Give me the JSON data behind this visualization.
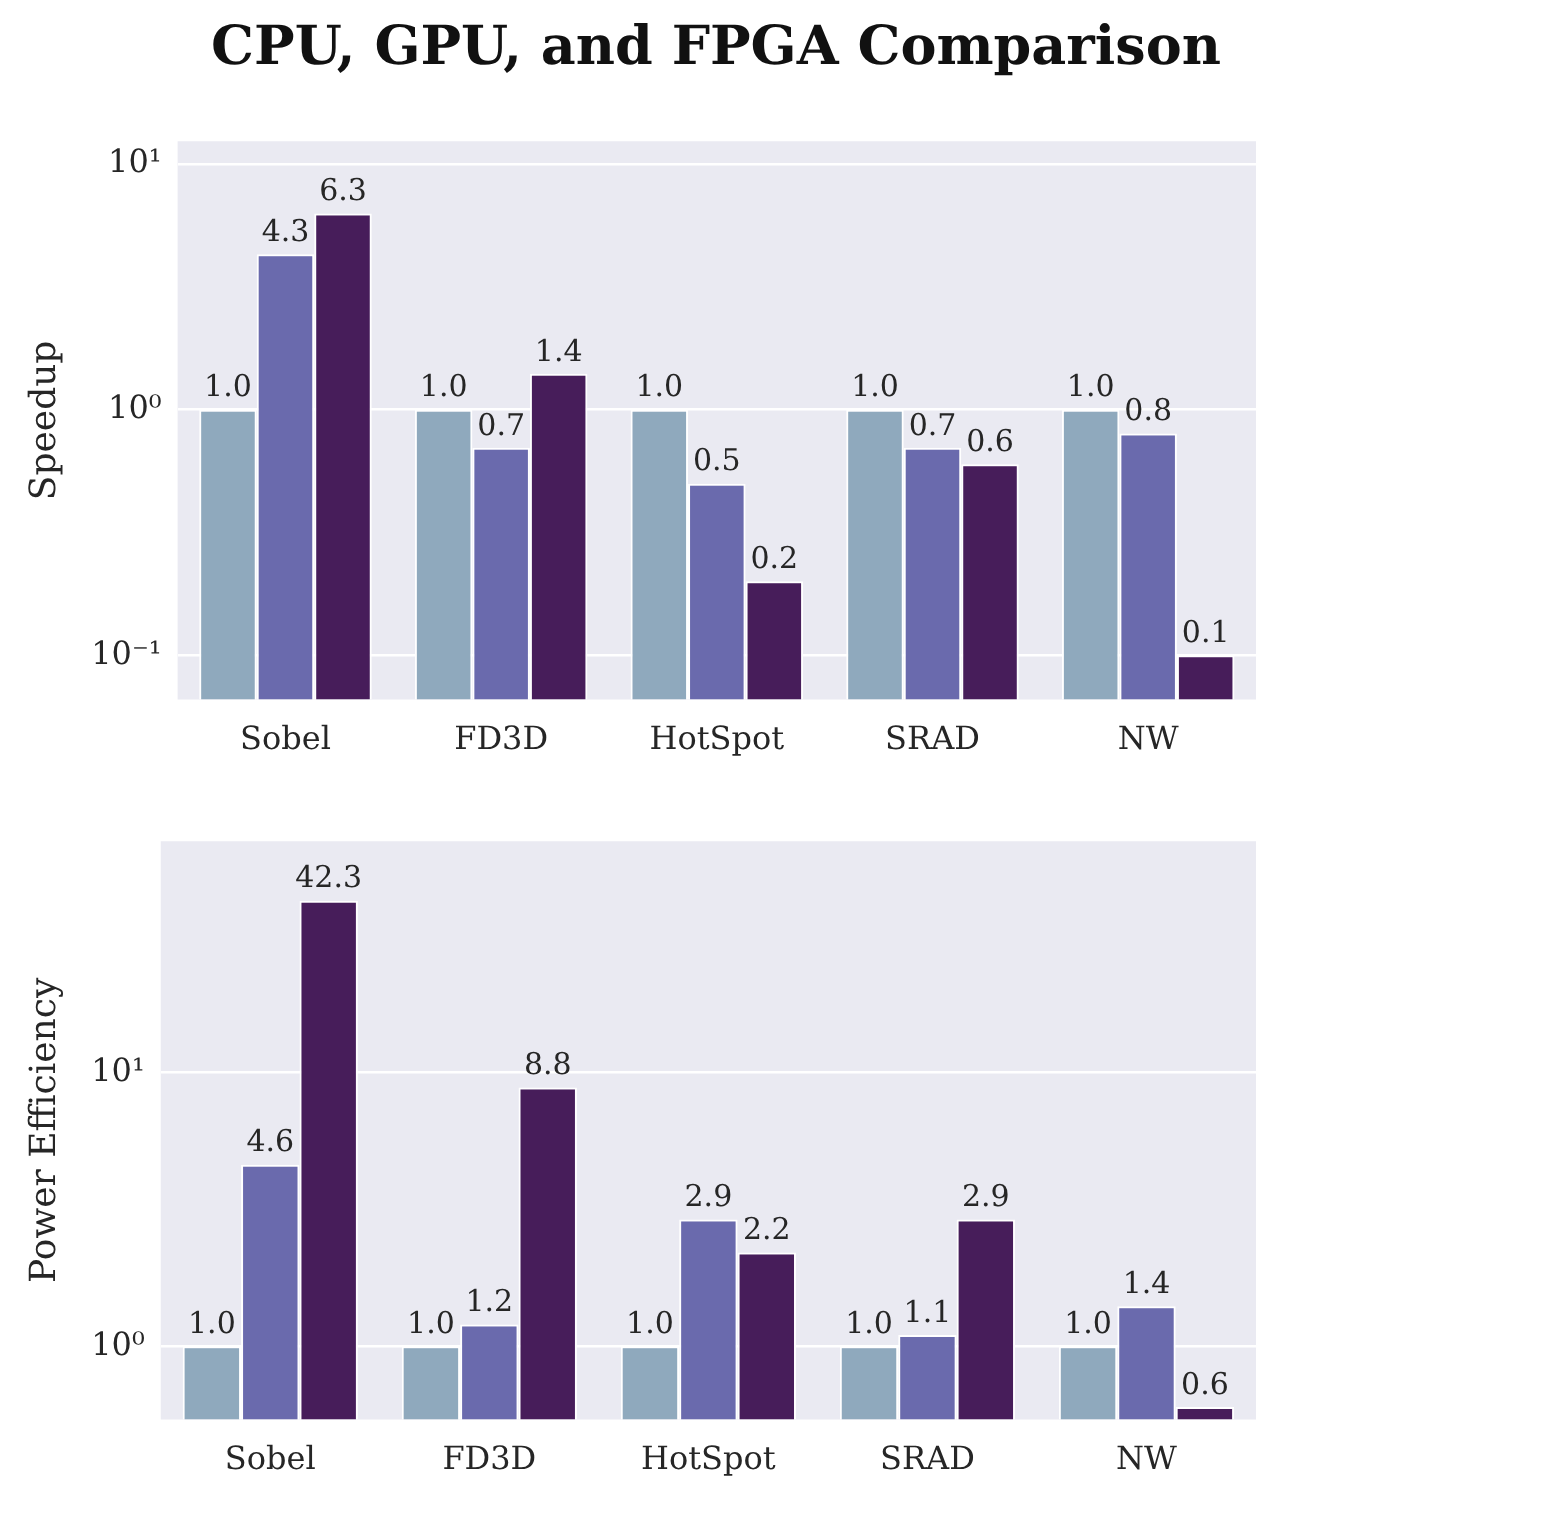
{
  "chart_data": [
    {
      "type": "bar",
      "title": "CPU, GPU, and FPGA Comparison",
      "ylabel": "Speedup",
      "categories": [
        "Sobel",
        "FD3D",
        "HotSpot",
        "SRAD",
        "NW"
      ],
      "log": "y",
      "ylim": [
        0.066,
        12.4
      ],
      "yticks": [
        {
          "value": 0.1,
          "label": "10⁻¹"
        },
        {
          "value": 1,
          "label": "10⁰"
        },
        {
          "value": 10,
          "label": "10¹"
        }
      ],
      "grid": "y",
      "legend": false,
      "series": [
        {
          "color": "#8fa9bd",
          "values": [
            1.0,
            1.0,
            1.0,
            1.0,
            1.0
          ],
          "value_labels": [
            "1.0",
            "1.0",
            "1.0",
            "1.0",
            "1.0"
          ]
        },
        {
          "color": "#6a6aad",
          "values": [
            4.3,
            0.7,
            0.5,
            0.7,
            0.8
          ],
          "value_labels": [
            "4.3",
            "0.7",
            "0.5",
            "0.7",
            "0.8"
          ]
        },
        {
          "color": "#471d5a",
          "values": [
            6.3,
            1.4,
            0.2,
            0.6,
            0.1
          ],
          "value_labels": [
            "6.3",
            "1.4",
            "0.2",
            "0.6",
            "0.1"
          ]
        }
      ]
    },
    {
      "type": "bar",
      "ylabel": "Power Efficiency",
      "categories": [
        "Sobel",
        "FD3D",
        "HotSpot",
        "SRAD",
        "NW"
      ],
      "log": "y",
      "ylim": [
        0.54,
        69.7
      ],
      "yticks": [
        {
          "value": 1,
          "label": "10⁰"
        },
        {
          "value": 10,
          "label": "10¹"
        }
      ],
      "grid": "y",
      "legend": false,
      "series": [
        {
          "color": "#8fa9bd",
          "values": [
            1.0,
            1.0,
            1.0,
            1.0,
            1.0
          ],
          "value_labels": [
            "1.0",
            "1.0",
            "1.0",
            "1.0",
            "1.0"
          ]
        },
        {
          "color": "#6a6aad",
          "values": [
            4.6,
            1.2,
            2.9,
            1.1,
            1.4
          ],
          "value_labels": [
            "4.6",
            "1.2",
            "2.9",
            "1.1",
            "1.4"
          ]
        },
        {
          "color": "#471d5a",
          "values": [
            42.3,
            8.8,
            2.2,
            2.9,
            0.6
          ],
          "value_labels": [
            "42.3",
            "8.8",
            "2.2",
            "2.9",
            "0.6"
          ]
        }
      ]
    }
  ]
}
